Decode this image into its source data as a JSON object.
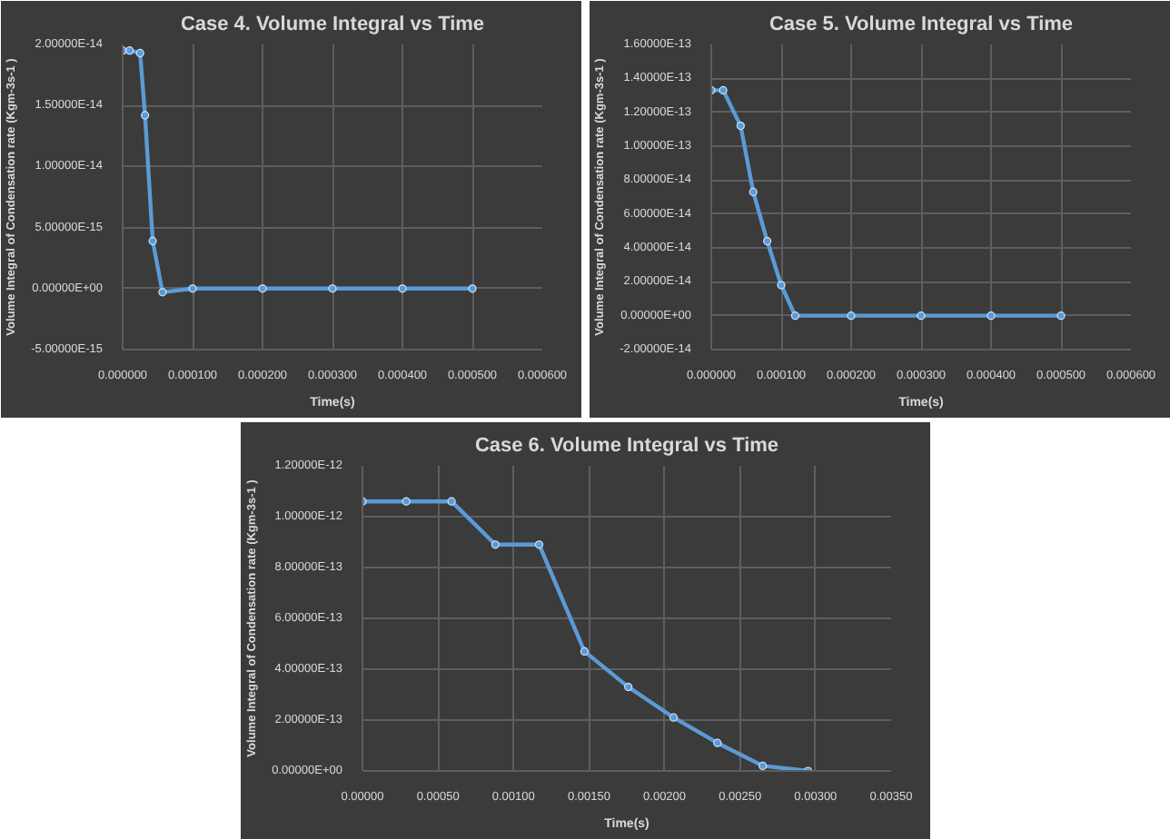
{
  "chart_data": [
    {
      "type": "line",
      "title": "Case 4. Volume Integral vs Time",
      "xlabel": "Time(s)",
      "ylabel": "Volume Integral of Condensation rate (Kgm-3s-1 )",
      "grid": true,
      "marker": "circle",
      "line_style": "solid",
      "x": [
        0,
        1e-05,
        2.5e-05,
        3.2e-05,
        4.3e-05,
        5.7e-05,
        0.0001,
        0.0002,
        0.0003,
        0.0004,
        0.0005
      ],
      "series": [
        {
          "color": "#5b9bd5",
          "values": [
            1.95e-14,
            1.95e-14,
            1.93e-14,
            1.42e-14,
            3.9e-15,
            -3e-16,
            0,
            0,
            0,
            0,
            0
          ]
        }
      ],
      "xlim": [
        0,
        0.0006
      ],
      "ylim": [
        -5e-15,
        2e-14
      ],
      "xticks": [
        {
          "value": 0,
          "label": "0.000000"
        },
        {
          "value": 0.0001,
          "label": "0.000100"
        },
        {
          "value": 0.0002,
          "label": "0.000200"
        },
        {
          "value": 0.0003,
          "label": "0.000300"
        },
        {
          "value": 0.0004,
          "label": "0.000400"
        },
        {
          "value": 0.0005,
          "label": "0.000500"
        },
        {
          "value": 0.0006,
          "label": "0.000600"
        }
      ],
      "yticks": [
        {
          "value": -5e-15,
          "label": "-5.00000E-15"
        },
        {
          "value": 0,
          "label": "0.00000E+00"
        },
        {
          "value": 5e-15,
          "label": "5.00000E-15"
        },
        {
          "value": 1e-14,
          "label": "1.00000E-14"
        },
        {
          "value": 1.5e-14,
          "label": "1.50000E-14"
        },
        {
          "value": 2e-14,
          "label": "2.00000E-14"
        }
      ]
    },
    {
      "type": "line",
      "title": "Case 5. Volume Integral vs Time",
      "xlabel": "Time(s)",
      "ylabel": "Volume Integral of Condensation rate (Kgm-3s-1 )",
      "grid": true,
      "marker": "circle",
      "line_style": "solid",
      "x": [
        0,
        1.7e-05,
        4.2e-05,
        6e-05,
        8e-05,
        0.0001,
        0.00012,
        0.0002,
        0.0003,
        0.0004,
        0.0005
      ],
      "series": [
        {
          "color": "#5b9bd5",
          "values": [
            1.33e-13,
            1.33e-13,
            1.12e-13,
            7.3e-14,
            4.4e-14,
            1.8e-14,
            0,
            0,
            0,
            0,
            0
          ]
        }
      ],
      "xlim": [
        0,
        0.0006
      ],
      "ylim": [
        -2e-14,
        1.6e-13
      ],
      "xticks": [
        {
          "value": 0,
          "label": "0.000000"
        },
        {
          "value": 0.0001,
          "label": "0.000100"
        },
        {
          "value": 0.0002,
          "label": "0.000200"
        },
        {
          "value": 0.0003,
          "label": "0.000300"
        },
        {
          "value": 0.0004,
          "label": "0.000400"
        },
        {
          "value": 0.0005,
          "label": "0.000500"
        },
        {
          "value": 0.0006,
          "label": "0.000600"
        }
      ],
      "yticks": [
        {
          "value": -2e-14,
          "label": "-2.00000E-14"
        },
        {
          "value": 0,
          "label": "0.00000E+00"
        },
        {
          "value": 2e-14,
          "label": "2.00000E-14"
        },
        {
          "value": 4e-14,
          "label": "4.00000E-14"
        },
        {
          "value": 6e-14,
          "label": "6.00000E-14"
        },
        {
          "value": 8e-14,
          "label": "8.00000E-14"
        },
        {
          "value": 1e-13,
          "label": "1.00000E-13"
        },
        {
          "value": 1.2e-13,
          "label": "1.20000E-13"
        },
        {
          "value": 1.4e-13,
          "label": "1.40000E-13"
        },
        {
          "value": 1.6e-13,
          "label": "1.60000E-13"
        }
      ]
    },
    {
      "type": "line",
      "title": "Case 6. Volume Integral vs Time",
      "xlabel": "Time(s)",
      "ylabel": "Volume Integral of Condensation rate (Kgm-3s-1 )",
      "grid": true,
      "marker": "circle",
      "line_style": "solid",
      "x": [
        0,
        0.00029,
        0.00059,
        0.00088,
        0.00117,
        0.00147,
        0.00176,
        0.00206,
        0.00235,
        0.00265,
        0.00295
      ],
      "series": [
        {
          "color": "#5b9bd5",
          "values": [
            1.06e-12,
            1.06e-12,
            1.06e-12,
            8.9e-13,
            8.9e-13,
            4.7e-13,
            3.3e-13,
            2.1e-13,
            1.1e-13,
            2e-14,
            0
          ]
        }
      ],
      "xlim": [
        0,
        0.0035
      ],
      "ylim": [
        0,
        1.2e-12
      ],
      "xticks": [
        {
          "value": 0,
          "label": "0.00000"
        },
        {
          "value": 0.0005,
          "label": "0.00050"
        },
        {
          "value": 0.001,
          "label": "0.00100"
        },
        {
          "value": 0.0015,
          "label": "0.00150"
        },
        {
          "value": 0.002,
          "label": "0.00200"
        },
        {
          "value": 0.0025,
          "label": "0.00250"
        },
        {
          "value": 0.003,
          "label": "0.00300"
        },
        {
          "value": 0.0035,
          "label": "0.00350"
        }
      ],
      "yticks": [
        {
          "value": 0,
          "label": "0.00000E+00"
        },
        {
          "value": 2e-13,
          "label": "2.00000E-13"
        },
        {
          "value": 4e-13,
          "label": "4.00000E-13"
        },
        {
          "value": 6e-13,
          "label": "6.00000E-13"
        },
        {
          "value": 8e-13,
          "label": "8.00000E-13"
        },
        {
          "value": 1e-12,
          "label": "1.00000E-12"
        },
        {
          "value": 1.2e-12,
          "label": "1.20000E-12"
        }
      ]
    }
  ]
}
